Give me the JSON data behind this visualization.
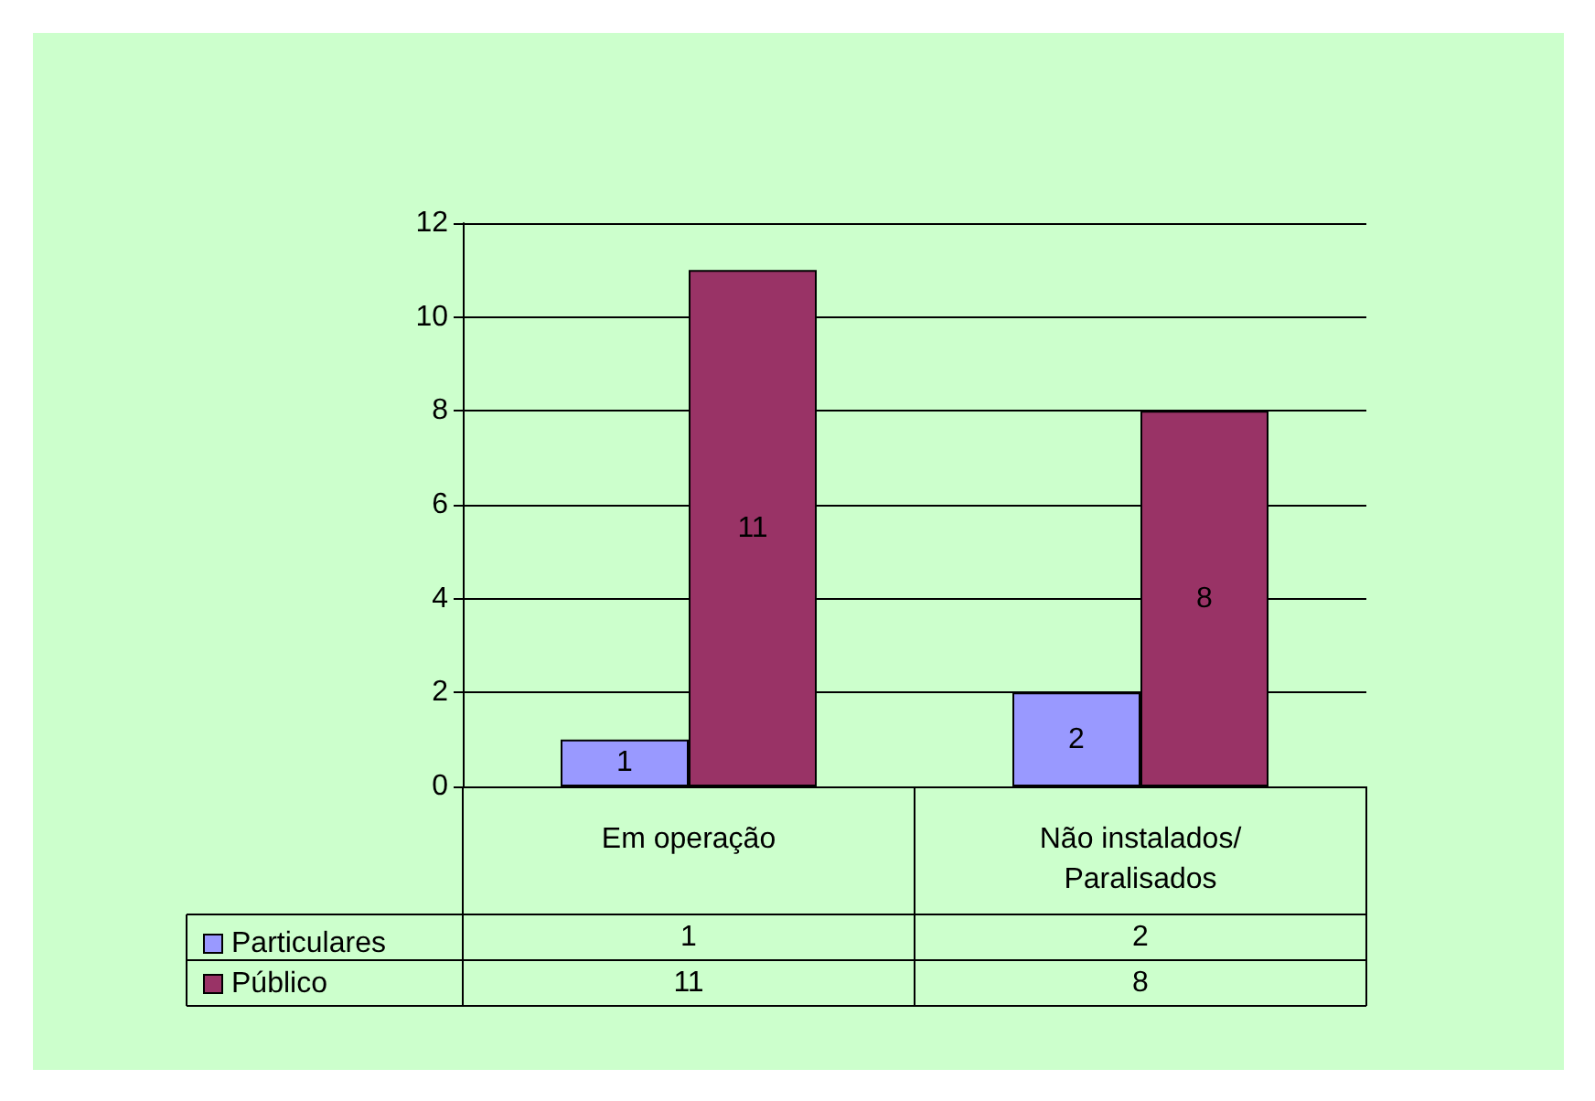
{
  "chart_data": {
    "type": "bar",
    "categories": [
      "Em operação",
      "Não instalados/Paralisados"
    ],
    "series": [
      {
        "name": "Particulares",
        "color": "#9999ff",
        "values": [
          1,
          2
        ],
        "value_labels": [
          "1",
          "2"
        ]
      },
      {
        "name": "Público",
        "color": "#993366",
        "values": [
          11,
          8
        ],
        "value_labels": [
          "11",
          "8"
        ]
      }
    ],
    "ylim": [
      0,
      12
    ],
    "yticks": [
      0,
      2,
      4,
      6,
      8,
      10,
      12
    ],
    "grid": "y",
    "data_labels": true,
    "legend": "bottom left"
  }
}
